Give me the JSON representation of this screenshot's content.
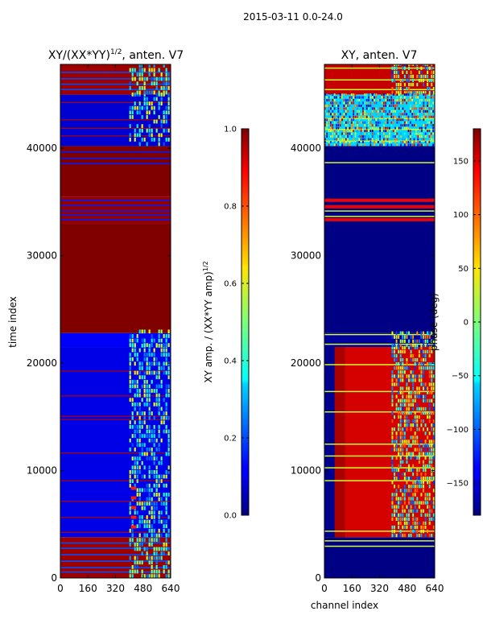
{
  "suptitle": "2015-03-11 0.0-24.0",
  "chart_data": [
    {
      "type": "heatmap",
      "title": "XY/(XX*YY)",
      "title_exponent": "1/2",
      "title_suffix": ", anten. V7",
      "xlabel": "",
      "ylabel": "time index",
      "xticks": [
        "0",
        "160",
        "320",
        "480",
        "640"
      ],
      "xlim": [
        0,
        640
      ],
      "yticks": [
        "0",
        "10000",
        "20000",
        "30000",
        "40000"
      ],
      "ylim": [
        0,
        47800
      ],
      "colorbar": {
        "label": "XY amp. / (XX*YY amp)",
        "label_exponent": "1/2",
        "range": [
          0.0,
          1.0
        ],
        "ticks": [
          "0.0",
          "0.2",
          "0.4",
          "0.6",
          "0.8",
          "1.0"
        ]
      },
      "time_bands": [
        {
          "from": 0,
          "to": 3800,
          "value": "high, with blue streaks"
        },
        {
          "from": 3800,
          "to": 21500,
          "value": "low (~0.1), bright structure in channels 420-620"
        },
        {
          "from": 21500,
          "to": 22800,
          "value": "mixed"
        },
        {
          "from": 22800,
          "to": 33000,
          "value": "saturated (1.0)"
        },
        {
          "from": 33000,
          "to": 35500,
          "value": "mixed horizontal streaks"
        },
        {
          "from": 35500,
          "to": 40200,
          "value": "saturated (1.0)"
        },
        {
          "from": 40200,
          "to": 45000,
          "value": "low, bright structure in channels 420-620"
        },
        {
          "from": 45000,
          "to": 47800,
          "value": "mixed horizontal streaks"
        }
      ]
    },
    {
      "type": "heatmap",
      "title": "XY, anten. V7",
      "xlabel": "channel index",
      "ylabel": "",
      "xticks": [
        "0",
        "160",
        "320",
        "480",
        "640"
      ],
      "xlim": [
        0,
        640
      ],
      "yticks": [
        "0",
        "10000",
        "20000",
        "30000",
        "40000"
      ],
      "ylim": [
        0,
        47800
      ],
      "colorbar": {
        "label": "phase (deg)",
        "range": [
          -180,
          180
        ],
        "ticks": [
          "−150",
          "−100",
          "−50",
          "0",
          "50",
          "100",
          "150"
        ]
      },
      "time_bands": [
        {
          "from": 0,
          "to": 3800,
          "value": "near -180, streaked"
        },
        {
          "from": 3800,
          "to": 21500,
          "value": "~150 red, noisy in channels 400-640"
        },
        {
          "from": 21500,
          "to": 22800,
          "value": "mixed"
        },
        {
          "from": 22800,
          "to": 40200,
          "value": "near -180 (dark blue)"
        },
        {
          "from": 40200,
          "to": 45000,
          "value": "noisy, cyan-yellow"
        },
        {
          "from": 45000,
          "to": 47800,
          "value": "red with streaks"
        }
      ]
    }
  ]
}
